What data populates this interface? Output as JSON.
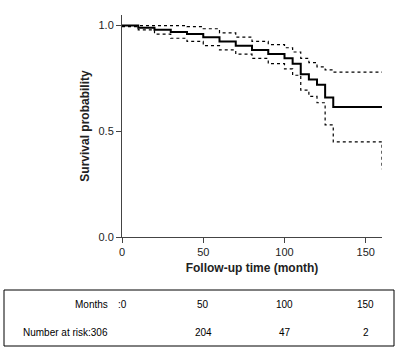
{
  "chart_data": {
    "type": "step",
    "xlabel": "Follow-up time (month)",
    "ylabel": "Survival probability",
    "xlim": [
      0,
      160
    ],
    "ylim": [
      0.0,
      1.05
    ],
    "xticks": [
      0,
      50,
      100,
      150
    ],
    "yticks": [
      {
        "value": 0.0,
        "label": "0.0"
      },
      {
        "value": 0.5,
        "label": "0.5"
      },
      {
        "value": 1.0,
        "label": "1.0"
      }
    ],
    "grid": false,
    "x": [
      0,
      10,
      20,
      30,
      40,
      50,
      60,
      70,
      80,
      90,
      100,
      105,
      110,
      115,
      120,
      125,
      130,
      160
    ],
    "series": [
      {
        "color": "#000000",
        "line_style": "dotted",
        "values": [
          1.0,
          1.0,
          1.0,
          1.0,
          0.995,
          0.985,
          0.965,
          0.945,
          0.925,
          0.91,
          0.895,
          0.875,
          0.845,
          0.825,
          0.805,
          0.79,
          0.78,
          0.78
        ]
      },
      {
        "color": "#000000",
        "line_style": "dotted",
        "values": [
          0.995,
          0.98,
          0.96,
          0.94,
          0.925,
          0.905,
          0.885,
          0.865,
          0.845,
          0.82,
          0.795,
          0.765,
          0.695,
          0.665,
          0.635,
          0.53,
          0.45,
          0.32
        ]
      },
      {
        "color": "#000000",
        "line_style": "solid",
        "values": [
          1.0,
          0.99,
          0.98,
          0.97,
          0.96,
          0.945,
          0.925,
          0.905,
          0.885,
          0.865,
          0.845,
          0.82,
          0.77,
          0.745,
          0.72,
          0.66,
          0.615,
          0.615
        ]
      }
    ],
    "risk_table": [
      {
        "label": "Months",
        "cells": [
          ":0",
          50,
          100,
          150
        ]
      },
      {
        "label": "Number at risk:306",
        "cells": [
          null,
          204,
          47,
          2
        ]
      }
    ]
  }
}
